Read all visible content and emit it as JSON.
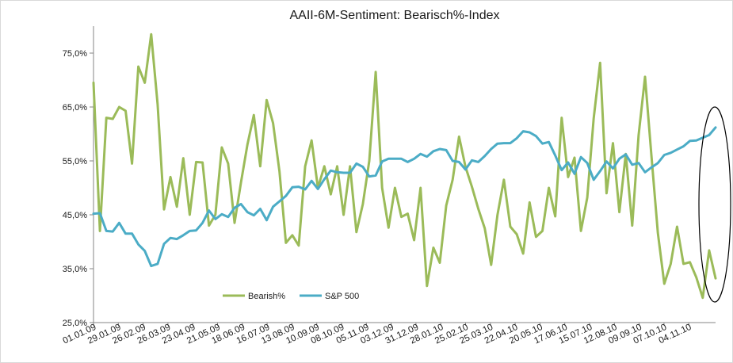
{
  "chart_data": {
    "type": "line",
    "title": "AAII-6M-Sentiment:  Bearisch%-Index",
    "xlabel": "",
    "ylabel": "",
    "ylim": [
      25,
      80
    ],
    "y_ticks": [
      {
        "value": 25,
        "label": "25,0%"
      },
      {
        "value": 35,
        "label": "35,0%"
      },
      {
        "value": 45,
        "label": "45,0%"
      },
      {
        "value": 55,
        "label": "55,0%"
      },
      {
        "value": 65,
        "label": "65,0%"
      },
      {
        "value": 75,
        "label": "75,0%"
      }
    ],
    "x_tick_labels": [
      "01.01.09",
      "29.01.09",
      "26.02.09",
      "26.03.09",
      "23.04.09",
      "21.05.09",
      "18.06.09",
      "16.07.09",
      "13.08.09",
      "10.09.09",
      "08.10.09",
      "05.11.09",
      "03.12.09",
      "31.12.09",
      "28.01.10",
      "25.02.10",
      "25.03.10",
      "22.04.10",
      "20.05.10",
      "17.06.10",
      "15.07.10",
      "12.08.10",
      "09.09.10",
      "07.10.10",
      "04.11.10"
    ],
    "grid": false,
    "legend_position": "bottom-center",
    "annotation": "ellipse around most recent data",
    "series": [
      {
        "name": "Bearish%",
        "color": "#9bbb59",
        "values": [
          69.5,
          42,
          63,
          62.8,
          65,
          64.3,
          54.5,
          72.5,
          69.5,
          78.5,
          65.5,
          46,
          52,
          46.5,
          55.5,
          45,
          54.8,
          54.7,
          43,
          45,
          57.5,
          54.5,
          43.5,
          51,
          58,
          63.5,
          54,
          66.3,
          62,
          53,
          39.8,
          41.2,
          39.3,
          54,
          58.8,
          50,
          54,
          48.8,
          54,
          45,
          54,
          41.8,
          47,
          55,
          71.5,
          50,
          42.6,
          50,
          44.6,
          45.2,
          40.3,
          50,
          31.8,
          38.9,
          36.1,
          46.7,
          51.5,
          59.5,
          53.9,
          50.2,
          46.1,
          42.5,
          35.7,
          45,
          51.5,
          42.8,
          41.4,
          37.8,
          47.3,
          40.9,
          42,
          50,
          44.7,
          63,
          52,
          55.6,
          42,
          48.2,
          62.9,
          73.2,
          49,
          58.3,
          45.5,
          56.3,
          43,
          59.8,
          70.6,
          55.9,
          41.6,
          32.2,
          35.9,
          42.8,
          35.9,
          36.2,
          33.4,
          29.6,
          38.4,
          33.2
        ]
      },
      {
        "name": "S&P 500",
        "color": "#4bacc6",
        "values": [
          45.2,
          45.3,
          42,
          41.9,
          43.5,
          41.5,
          41.5,
          39.5,
          38.3,
          35.5,
          35.9,
          39.6,
          40.7,
          40.5,
          41.2,
          42,
          42.1,
          43.5,
          45.8,
          44.2,
          45.1,
          44.6,
          46.3,
          47,
          45.5,
          44.9,
          46.1,
          44,
          46.5,
          47.5,
          48.5,
          50.1,
          50.2,
          49.7,
          51.3,
          49.8,
          51.6,
          53.2,
          52.9,
          52.8,
          52.8,
          54.5,
          53.9,
          52.1,
          52.3,
          54.9,
          55.4,
          55.4,
          55.4,
          54.8,
          55.4,
          56.3,
          55.8,
          56.8,
          57.2,
          57,
          55,
          54.8,
          53.4,
          55.1,
          54.8,
          55.9,
          57.2,
          58.2,
          58.3,
          58.3,
          59.2,
          60.5,
          60.3,
          59.6,
          58.2,
          58.5,
          56,
          53.3,
          54.7,
          52.6,
          55.7,
          54.6,
          51.5,
          53.1,
          54.9,
          53.6,
          55.4,
          56.2,
          54.3,
          54.6,
          52.9,
          53.8,
          54.6,
          56.1,
          56.5,
          57.1,
          57.7,
          58.7,
          58.8,
          59.3,
          59.8,
          61.2
        ]
      }
    ]
  }
}
